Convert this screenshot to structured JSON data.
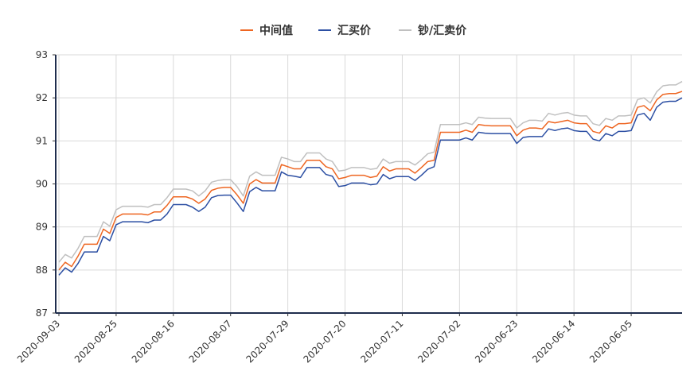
{
  "chart_data": {
    "type": "line",
    "legend_position": "top-center",
    "grid": true,
    "ylim": [
      87,
      93
    ],
    "yticks": [
      "87",
      "88",
      "89",
      "90",
      "91",
      "92",
      "93"
    ],
    "xtick_labels": [
      "2020-09-03",
      "2020-08-25",
      "2020-08-16",
      "2020-08-07",
      "2020-07-29",
      "2020-07-20",
      "2020-07-11",
      "2020-07-02",
      "2020-06-23",
      "2020-06-14",
      "2020-06-05"
    ],
    "series": [
      {
        "name": "中间值",
        "color": "#ee6622",
        "values": [
          88.0,
          88.18,
          88.08,
          88.32,
          88.6,
          88.6,
          88.6,
          88.95,
          88.85,
          89.22,
          89.3,
          89.3,
          89.3,
          89.3,
          89.28,
          89.35,
          89.35,
          89.5,
          89.7,
          89.7,
          89.7,
          89.65,
          89.55,
          89.65,
          89.85,
          89.9,
          89.92,
          89.92,
          89.75,
          89.55,
          90.0,
          90.1,
          90.02,
          90.02,
          90.02,
          90.45,
          90.4,
          90.35,
          90.35,
          90.55,
          90.55,
          90.55,
          90.4,
          90.35,
          90.12,
          90.15,
          90.2,
          90.2,
          90.2,
          90.15,
          90.18,
          90.4,
          90.3,
          90.35,
          90.35,
          90.35,
          90.25,
          90.38,
          90.52,
          90.55,
          91.2,
          91.2,
          91.2,
          91.2,
          91.25,
          91.2,
          91.38,
          91.36,
          91.35,
          91.35,
          91.35,
          91.35,
          91.12,
          91.25,
          91.3,
          91.3,
          91.28,
          91.45,
          91.42,
          91.45,
          91.48,
          91.42,
          91.4,
          91.4,
          91.22,
          91.18,
          91.35,
          91.3,
          91.4,
          91.4,
          91.42,
          91.78,
          91.82,
          91.7,
          91.95,
          92.08,
          92.1,
          92.1,
          92.15
        ]
      },
      {
        "name": "汇买价",
        "color": "#2c4fa3",
        "values": [
          87.88,
          88.05,
          87.95,
          88.15,
          88.42,
          88.42,
          88.42,
          88.78,
          88.68,
          89.05,
          89.12,
          89.12,
          89.12,
          89.12,
          89.1,
          89.16,
          89.16,
          89.3,
          89.52,
          89.52,
          89.52,
          89.46,
          89.36,
          89.46,
          89.68,
          89.73,
          89.74,
          89.74,
          89.56,
          89.36,
          89.82,
          89.92,
          89.84,
          89.84,
          89.84,
          90.28,
          90.2,
          90.18,
          90.15,
          90.38,
          90.38,
          90.38,
          90.22,
          90.18,
          89.94,
          89.96,
          90.02,
          90.02,
          90.02,
          89.98,
          90.0,
          90.22,
          90.12,
          90.17,
          90.17,
          90.17,
          90.08,
          90.2,
          90.34,
          90.4,
          91.02,
          91.02,
          91.02,
          91.02,
          91.07,
          91.02,
          91.2,
          91.18,
          91.17,
          91.17,
          91.17,
          91.17,
          90.94,
          91.08,
          91.1,
          91.1,
          91.1,
          91.28,
          91.24,
          91.28,
          91.3,
          91.24,
          91.22,
          91.22,
          91.04,
          91.0,
          91.17,
          91.12,
          91.22,
          91.22,
          91.24,
          91.6,
          91.64,
          91.48,
          91.78,
          91.9,
          91.92,
          91.92,
          92.0
        ]
      },
      {
        "name": "钞/汇卖价",
        "color": "#c0c0c0",
        "values": [
          88.18,
          88.36,
          88.28,
          88.5,
          88.78,
          88.78,
          88.78,
          89.12,
          89.02,
          89.4,
          89.48,
          89.48,
          89.48,
          89.48,
          89.46,
          89.52,
          89.52,
          89.68,
          89.88,
          89.88,
          89.88,
          89.84,
          89.72,
          89.84,
          90.04,
          90.08,
          90.1,
          90.1,
          89.94,
          89.72,
          90.18,
          90.28,
          90.2,
          90.2,
          90.2,
          90.62,
          90.58,
          90.52,
          90.52,
          90.72,
          90.72,
          90.72,
          90.58,
          90.52,
          90.3,
          90.32,
          90.38,
          90.38,
          90.38,
          90.34,
          90.36,
          90.58,
          90.48,
          90.52,
          90.52,
          90.52,
          90.44,
          90.56,
          90.7,
          90.74,
          91.38,
          91.38,
          91.38,
          91.38,
          91.42,
          91.38,
          91.55,
          91.53,
          91.52,
          91.52,
          91.52,
          91.52,
          91.3,
          91.42,
          91.48,
          91.48,
          91.46,
          91.64,
          91.6,
          91.64,
          91.66,
          91.6,
          91.58,
          91.58,
          91.4,
          91.36,
          91.52,
          91.48,
          91.58,
          91.58,
          91.6,
          91.96,
          92.0,
          91.88,
          92.14,
          92.28,
          92.3,
          92.3,
          92.38
        ]
      }
    ]
  }
}
